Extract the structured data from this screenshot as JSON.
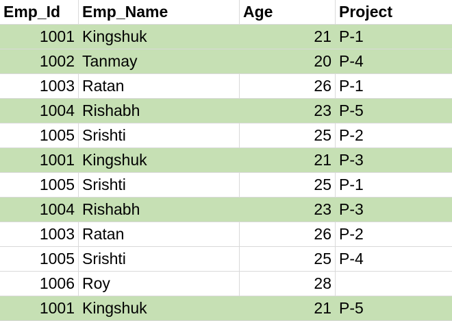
{
  "table": {
    "headers": [
      "Emp_Id",
      "Emp_Name",
      "Age",
      "Project"
    ],
    "rows": [
      {
        "emp_id": "1001",
        "emp_name": "Kingshuk",
        "age": "21",
        "project": "P-1",
        "highlighted": true
      },
      {
        "emp_id": "1002",
        "emp_name": "Tanmay",
        "age": "20",
        "project": "P-4",
        "highlighted": true
      },
      {
        "emp_id": "1003",
        "emp_name": "Ratan",
        "age": "26",
        "project": "P-1",
        "highlighted": false
      },
      {
        "emp_id": "1004",
        "emp_name": "Rishabh",
        "age": "23",
        "project": "P-5",
        "highlighted": true
      },
      {
        "emp_id": "1005",
        "emp_name": "Srishti",
        "age": "25",
        "project": "P-2",
        "highlighted": false
      },
      {
        "emp_id": "1001",
        "emp_name": "Kingshuk",
        "age": "21",
        "project": "P-3",
        "highlighted": true
      },
      {
        "emp_id": "1005",
        "emp_name": "Srishti",
        "age": "25",
        "project": "P-1",
        "highlighted": false
      },
      {
        "emp_id": "1004",
        "emp_name": "Rishabh",
        "age": "23",
        "project": "P-3",
        "highlighted": true
      },
      {
        "emp_id": "1003",
        "emp_name": "Ratan",
        "age": "26",
        "project": "P-2",
        "highlighted": false
      },
      {
        "emp_id": "1005",
        "emp_name": "Srishti",
        "age": "25",
        "project": "P-4",
        "highlighted": false
      },
      {
        "emp_id": "1006",
        "emp_name": "Roy",
        "age": "28",
        "project": "",
        "highlighted": false
      },
      {
        "emp_id": "1001",
        "emp_name": "Kingshuk",
        "age": "21",
        "project": "P-5",
        "highlighted": true
      }
    ]
  },
  "colors": {
    "highlight": "#c6e0b4",
    "gridline": "#d9d9d9",
    "text": "#000000"
  }
}
